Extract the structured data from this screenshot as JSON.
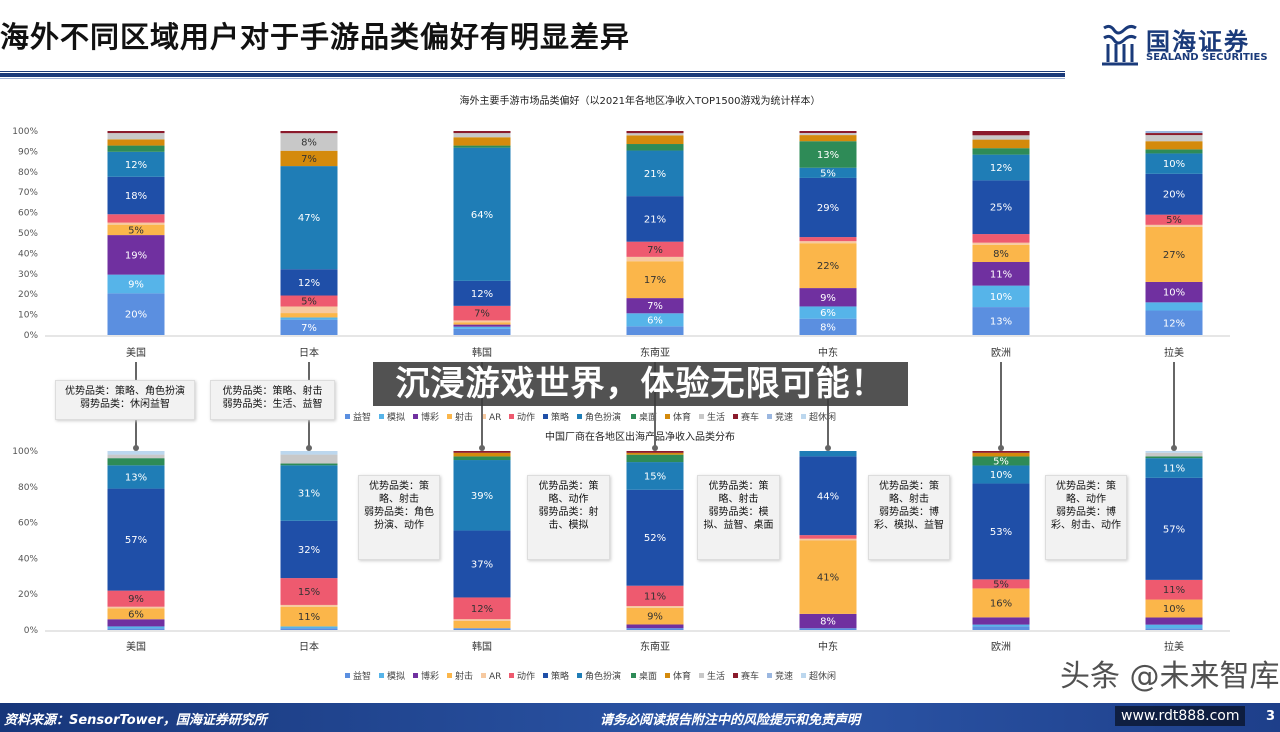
{
  "header": {
    "title": "海外不同区域用户对于手游品类偏好有明显差异",
    "logo_cn": "国海证券",
    "logo_en": "SEALAND SECURITIES",
    "accent_color": "#1a3a7a"
  },
  "overlay_banner": "沉浸游戏世界，体验无限可能！",
  "footer": {
    "source": "资料来源：SensorTower，国海证券研究所",
    "note": "请务必阅读报告附注中的风险提示和免责声明",
    "page": "3"
  },
  "watermark": {
    "text1": "头条 @未来智库",
    "text2": "www.rdt888.com"
  },
  "legend": [
    {
      "name": "益智",
      "color": "#5b8fe0"
    },
    {
      "name": "模拟",
      "color": "#56b4e9"
    },
    {
      "name": "博彩",
      "color": "#7030a0"
    },
    {
      "name": "射击",
      "color": "#fbb64a"
    },
    {
      "name": "AR",
      "color": "#f6c9a0"
    },
    {
      "name": "动作",
      "color": "#ee5a6f"
    },
    {
      "name": "策略",
      "color": "#1f4fa8"
    },
    {
      "name": "角色扮演",
      "color": "#1f7db6"
    },
    {
      "name": "桌面",
      "color": "#2e8b57"
    },
    {
      "name": "体育",
      "color": "#d48a0c"
    },
    {
      "name": "生活",
      "color": "#c8c8c8"
    },
    {
      "name": "赛车",
      "color": "#8b1a2b"
    },
    {
      "name": "竞速",
      "color": "#9bb7e0"
    },
    {
      "name": "超休闲",
      "color": "#bcd7ee"
    }
  ],
  "callouts": [
    "优势品类：策略、角色扮演\n弱势品类：休闲益智",
    "优势品类：策略、射击\n弱势品类：生活、益智",
    "优势品类：策略、射击\n弱势品类：角色扮演、动作",
    "优势品类：策略、动作\n弱势品类：射击、模拟",
    "优势品类：策略、射击\n弱势品类：模拟、益智、桌面",
    "优势品类：策略、射击\n弱势品类：博彩、模拟、益智",
    "优势品类：策略、动作\n弱势品类：博彩、射击、动作"
  ],
  "chart_data": [
    {
      "type": "bar",
      "stacked": true,
      "percent": true,
      "title": "海外主要手游市场品类偏好（以2021年各地区净收入TOP1500游戏为统计样本）",
      "categories": [
        "美国",
        "日本",
        "韩国",
        "东南亚",
        "中东",
        "欧洲",
        "拉美"
      ],
      "yticks": [
        "0%",
        "10%",
        "20%",
        "30%",
        "40%",
        "50%",
        "60%",
        "70%",
        "80%",
        "90%",
        "100%"
      ],
      "ylim": [
        0,
        100
      ],
      "series": [
        {
          "name": "益智",
          "values": [
            20,
            7,
            3,
            4,
            8,
            13,
            12
          ]
        },
        {
          "name": "模拟",
          "values": [
            9,
            1,
            1,
            6,
            6,
            10,
            4
          ]
        },
        {
          "name": "博彩",
          "values": [
            19,
            0,
            1,
            7,
            9,
            11,
            10
          ]
        },
        {
          "name": "射击",
          "values": [
            5,
            2,
            1,
            17,
            22,
            8,
            27
          ]
        },
        {
          "name": "AR",
          "values": [
            1,
            3,
            1,
            2,
            1,
            1,
            1
          ]
        },
        {
          "name": "动作",
          "values": [
            4,
            5,
            7,
            7,
            2,
            4,
            5
          ]
        },
        {
          "name": "策略",
          "values": [
            18,
            12,
            12,
            21,
            29,
            25,
            20
          ]
        },
        {
          "name": "角色扮演",
          "values": [
            12,
            47,
            64,
            21,
            5,
            12,
            10
          ]
        },
        {
          "name": "桌面",
          "values": [
            3,
            0,
            1,
            3,
            13,
            3,
            2
          ]
        },
        {
          "name": "体育",
          "values": [
            3,
            7,
            4,
            4,
            3,
            4,
            4
          ]
        },
        {
          "name": "生活",
          "values": [
            3,
            8,
            2,
            1,
            1,
            2,
            3
          ]
        },
        {
          "name": "赛车",
          "values": [
            1,
            1,
            1,
            1,
            1,
            2,
            1
          ]
        },
        {
          "name": "竞速",
          "values": [
            0,
            0,
            0,
            0,
            0,
            0,
            1
          ]
        },
        {
          "name": "超休闲",
          "values": [
            0,
            0,
            0,
            0,
            0,
            0,
            0
          ]
        }
      ]
    },
    {
      "type": "bar",
      "stacked": true,
      "percent": true,
      "title": "中国厂商在各地区出海产品净收入品类分布",
      "categories": [
        "美国",
        "日本",
        "韩国",
        "东南亚",
        "中东",
        "欧洲",
        "拉美"
      ],
      "yticks": [
        "0%",
        "20%",
        "40%",
        "60%",
        "80%",
        "100%"
      ],
      "ylim": [
        0,
        100
      ],
      "series": [
        {
          "name": "益智",
          "values": [
            1,
            1,
            1,
            1,
            1,
            2,
            1
          ]
        },
        {
          "name": "模拟",
          "values": [
            1,
            1,
            0,
            0,
            0,
            1,
            2
          ]
        },
        {
          "name": "博彩",
          "values": [
            4,
            0,
            0,
            2,
            8,
            4,
            4
          ]
        },
        {
          "name": "射击",
          "values": [
            6,
            11,
            4,
            9,
            41,
            16,
            10
          ]
        },
        {
          "name": "AR",
          "values": [
            1,
            1,
            1,
            1,
            1,
            0,
            0
          ]
        },
        {
          "name": "动作",
          "values": [
            9,
            15,
            12,
            11,
            2,
            5,
            11
          ]
        },
        {
          "name": "策略",
          "values": [
            57,
            32,
            37,
            52,
            44,
            53,
            57
          ]
        },
        {
          "name": "角色扮演",
          "values": [
            13,
            31,
            39,
            15,
            3,
            10,
            11
          ]
        },
        {
          "name": "桌面",
          "values": [
            4,
            1,
            2,
            4,
            0,
            5,
            1
          ]
        },
        {
          "name": "体育",
          "values": [
            0,
            0,
            2,
            1,
            0,
            2,
            0
          ]
        },
        {
          "name": "生活",
          "values": [
            2,
            5,
            0,
            0,
            0,
            0,
            2
          ]
        },
        {
          "name": "赛车",
          "values": [
            0,
            0,
            1,
            1,
            0,
            1,
            0
          ]
        },
        {
          "name": "竞速",
          "values": [
            0,
            0,
            0,
            0,
            0,
            0,
            0
          ]
        },
        {
          "name": "超休闲",
          "values": [
            2,
            2,
            0,
            0,
            0,
            0,
            1
          ]
        }
      ]
    }
  ]
}
